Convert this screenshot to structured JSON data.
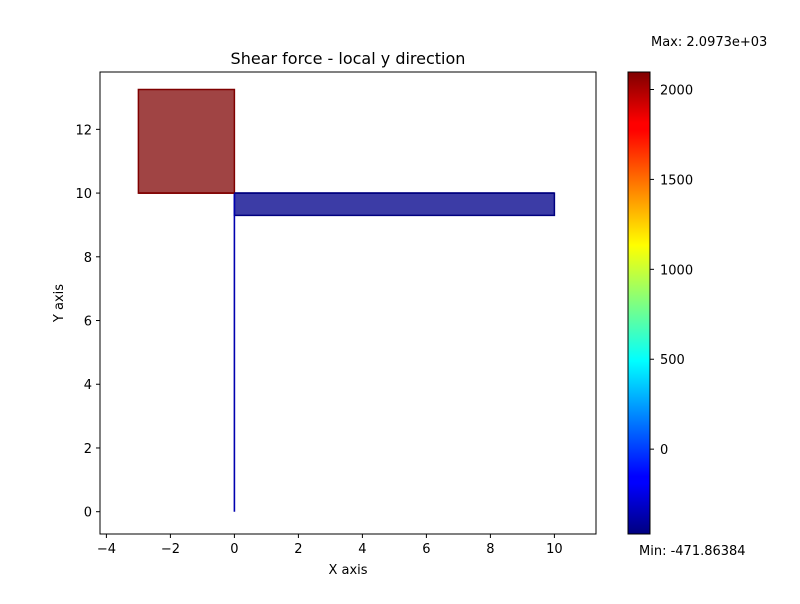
{
  "chart_data": {
    "type": "area",
    "title": "Shear force - local y direction",
    "xlabel": "X axis",
    "ylabel": "Y axis",
    "xlim": [
      -4.2,
      11.3
    ],
    "ylim": [
      -0.7,
      13.8
    ],
    "xticks": [
      -4,
      -2,
      0,
      2,
      4,
      6,
      8,
      10
    ],
    "yticks": [
      0,
      2,
      4,
      6,
      8,
      10,
      12
    ],
    "grid": false,
    "members": [
      {
        "start": [
          0,
          0
        ],
        "end": [
          0,
          10
        ],
        "shear": -5,
        "color": "#0000b0"
      },
      {
        "start": [
          -3,
          10
        ],
        "end": [
          0,
          10
        ],
        "shear": 2097.3,
        "color": "#7f0000"
      },
      {
        "start": [
          0,
          10
        ],
        "end": [
          10,
          10
        ],
        "shear": -471.86384,
        "color": "#00007f"
      }
    ],
    "diagram_polygons": [
      {
        "points": [
          [
            -3,
            10
          ],
          [
            0,
            10
          ],
          [
            0,
            13.25
          ],
          [
            -3,
            13.25
          ]
        ],
        "fill": "#a04444",
        "edge": "#7f0000"
      },
      {
        "points": [
          [
            0,
            10
          ],
          [
            10,
            10
          ],
          [
            10,
            9.3
          ],
          [
            0,
            9.3
          ]
        ],
        "fill": "#3c3ca6",
        "edge": "#00007f"
      }
    ],
    "colorbar": {
      "colormap": "jet",
      "min": -471.86384,
      "max": 2097.3,
      "ticks": [
        0,
        500,
        1000,
        1500,
        2000
      ],
      "max_label": "Max: 2.0973e+03",
      "min_label": "Min: -471.86384"
    }
  }
}
